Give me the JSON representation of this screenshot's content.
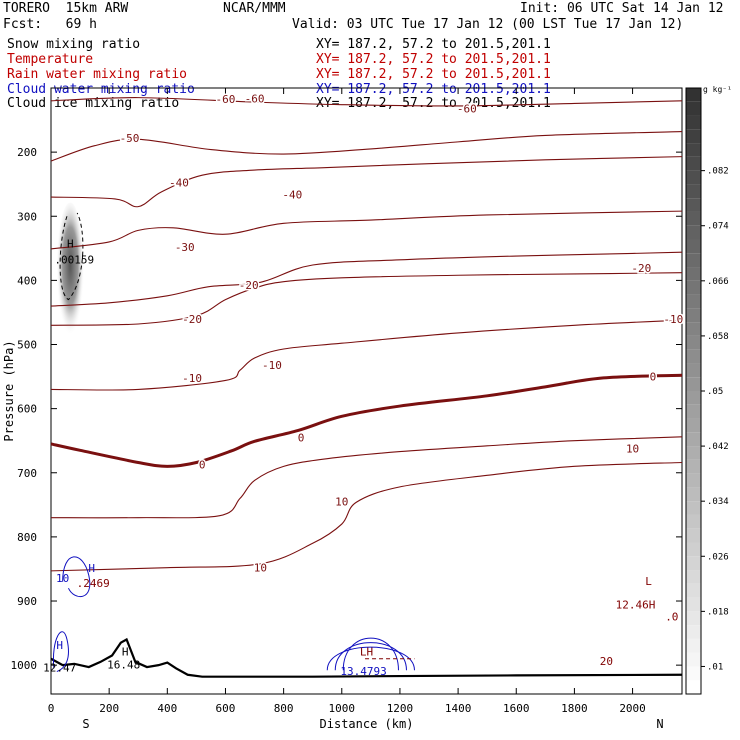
{
  "header": {
    "model": "TORERO  15km ARW",
    "org": "NCAR/MMM",
    "init": "Init: 06 UTC Sat 14 Jan 12",
    "fcst": "Fcst:   69 h",
    "valid": "Valid: 03 UTC Tue 17 Jan 12 (00 LST Tue 17 Jan 12)",
    "fields": [
      {
        "name": "Snow mixing ratio",
        "color": "#000000",
        "xy": "XY= 187.2, 57.2 to 201.5,201.1"
      },
      {
        "name": "Temperature",
        "color": "#c00000",
        "xy": "XY= 187.2, 57.2 to 201.5,201.1"
      },
      {
        "name": "Rain water mixing ratio",
        "color": "#c00000",
        "xy": "XY= 187.2, 57.2 to 201.5,201.1"
      },
      {
        "name": "Cloud water mixing ratio",
        "color": "#1010c0",
        "xy": "XY= 187.2, 57.2 to 201.5,201.1"
      },
      {
        "name": "Cloud ice mixing ratio",
        "color": "#000000",
        "xy": "XY= 187.2, 57.2 to 201.5,201.1"
      }
    ]
  },
  "chart_data": {
    "type": "cross-section contour",
    "xlabel": "Distance (km)",
    "ylabel": "Pressure (hPa)",
    "xlim": [
      0,
      2170
    ],
    "ylim": [
      1045,
      100
    ],
    "x_ticks": [
      "0",
      "200",
      "400",
      "600",
      "800",
      "1000",
      "1200",
      "1400",
      "1600",
      "1800",
      "2000"
    ],
    "y_ticks": [
      "200",
      "300",
      "400",
      "500",
      "600",
      "700",
      "800",
      "900",
      "1000"
    ],
    "endpoints": {
      "left": "S",
      "right": "N"
    },
    "colorbar": {
      "unit": "g kg⁻¹",
      "ticks": [
        ".01",
        ".018",
        ".026",
        ".034",
        ".042",
        ".05",
        ".058",
        ".066",
        ".074",
        ".082"
      ],
      "range": [
        0.006,
        0.094
      ]
    },
    "temperature_isotherms": [
      {
        "level": -60,
        "pts": [
          [
            0,
            120
          ],
          [
            300,
            115
          ],
          [
            700,
            122
          ],
          [
            1000,
            126
          ],
          [
            1400,
            128
          ],
          [
            1800,
            124
          ],
          [
            2170,
            120
          ]
        ],
        "labels": [
          [
            600,
            117,
            "-60"
          ],
          [
            700,
            116,
            "-60"
          ],
          [
            1430,
            132,
            "-60"
          ]
        ]
      },
      {
        "level": -50,
        "pts": [
          [
            0,
            214
          ],
          [
            150,
            190
          ],
          [
            300,
            180
          ],
          [
            550,
            196
          ],
          [
            800,
            203
          ],
          [
            1100,
            195
          ],
          [
            1400,
            184
          ],
          [
            1700,
            174
          ],
          [
            2170,
            168
          ]
        ],
        "labels": [
          [
            270,
            178,
            "-50"
          ]
        ]
      },
      {
        "level": -40,
        "pts": [
          [
            0,
            270
          ],
          [
            220,
            273
          ],
          [
            300,
            285
          ],
          [
            380,
            262
          ],
          [
            520,
            236
          ],
          [
            700,
            228
          ],
          [
            950,
            224
          ],
          [
            1300,
            218
          ],
          [
            1700,
            212
          ],
          [
            2170,
            207
          ]
        ],
        "labels": [
          [
            440,
            247,
            "-40"
          ],
          [
            830,
            266,
            "-40"
          ]
        ]
      },
      {
        "level": -30,
        "pts": [
          [
            0,
            351
          ],
          [
            200,
            340
          ],
          [
            300,
            322
          ],
          [
            420,
            318
          ],
          [
            600,
            328
          ],
          [
            800,
            311
          ],
          [
            1100,
            306
          ],
          [
            1500,
            298
          ],
          [
            2170,
            292
          ]
        ],
        "labels": [
          [
            460,
            348,
            "-30"
          ]
        ]
      },
      {
        "level": -20,
        "pts": [
          [
            0,
            440
          ],
          [
            200,
            435
          ],
          [
            400,
            424
          ],
          [
            540,
            410
          ],
          [
            720,
            403
          ],
          [
            900,
            376
          ],
          [
            1200,
            368
          ],
          [
            1600,
            362
          ],
          [
            2000,
            358
          ],
          [
            2170,
            356
          ]
        ],
        "labels": [
          [
            680,
            407,
            "-20"
          ],
          [
            2030,
            381,
            "-20"
          ]
        ]
      },
      {
        "level": -20,
        "pts": [
          [
            0,
            470
          ],
          [
            300,
            468
          ],
          [
            500,
            455
          ],
          [
            600,
            430
          ],
          [
            700,
            412
          ],
          [
            800,
            402
          ],
          [
            1000,
            396
          ],
          [
            1400,
            392
          ],
          [
            1800,
            390
          ],
          [
            2170,
            388
          ]
        ],
        "labels": [
          [
            485,
            460,
            "-20"
          ]
        ]
      },
      {
        "level": -10,
        "pts": [
          [
            0,
            570
          ],
          [
            300,
            570
          ],
          [
            600,
            556
          ],
          [
            650,
            540
          ],
          [
            700,
            521
          ],
          [
            800,
            507
          ],
          [
            1000,
            498
          ],
          [
            1400,
            482
          ],
          [
            1800,
            470
          ],
          [
            2170,
            462
          ]
        ],
        "labels": [
          [
            485,
            552,
            "-10"
          ],
          [
            760,
            532,
            "-10"
          ],
          [
            2140,
            460,
            "-10"
          ]
        ]
      },
      {
        "level": 0,
        "thick": true,
        "pts": [
          [
            0,
            655
          ],
          [
            100,
            665
          ],
          [
            300,
            684
          ],
          [
            400,
            690
          ],
          [
            500,
            684
          ],
          [
            620,
            666
          ],
          [
            700,
            651
          ],
          [
            850,
            634
          ],
          [
            1000,
            612
          ],
          [
            1200,
            596
          ],
          [
            1500,
            580
          ],
          [
            1700,
            566
          ],
          [
            1900,
            552
          ],
          [
            2170,
            548
          ]
        ],
        "labels": [
          [
            520,
            687,
            "0"
          ],
          [
            860,
            645,
            "0"
          ],
          [
            2070,
            550,
            "0"
          ]
        ]
      },
      {
        "level": 10,
        "pts": [
          [
            0,
            770
          ],
          [
            300,
            770
          ],
          [
            580,
            767
          ],
          [
            650,
            740
          ],
          [
            700,
            712
          ],
          [
            800,
            690
          ],
          [
            950,
            678
          ],
          [
            1200,
            667
          ],
          [
            1500,
            658
          ],
          [
            1800,
            650
          ],
          [
            2170,
            644
          ]
        ],
        "labels": [
          [
            1000,
            745,
            "10"
          ],
          [
            2000,
            662,
            "10"
          ]
        ]
      },
      {
        "level": 10,
        "pts": [
          [
            0,
            853
          ],
          [
            400,
            848
          ],
          [
            720,
            842
          ],
          [
            900,
            810
          ],
          [
            1000,
            780
          ],
          [
            1050,
            746
          ],
          [
            1200,
            722
          ],
          [
            1500,
            704
          ],
          [
            1800,
            690
          ],
          [
            2170,
            684
          ]
        ],
        "labels": [
          [
            720,
            848,
            "10"
          ]
        ]
      }
    ],
    "ice_maximum": {
      "label": "H",
      "value": ".00159",
      "x": 80,
      "p": 380
    },
    "annotations": [
      {
        "text": "L",
        "color": "#800000",
        "x": 2055,
        "p": 875
      },
      {
        "text": "12.46H",
        "color": "#800000",
        "x": 2010,
        "p": 912
      },
      {
        "text": ".0",
        "color": "#800000",
        "x": 2135,
        "p": 930
      },
      {
        "text": "LH",
        "color": "#800000",
        "x": 1085,
        "p": 985
      },
      {
        "text": "13.4793",
        "color": "#1010c0",
        "x": 1075,
        "p": 1015
      },
      {
        "text": "H",
        "color": "#1010c0",
        "x": 30,
        "p": 975
      },
      {
        "text": "10",
        "color": "#1010c0",
        "x": 40,
        "p": 870
      },
      {
        "text": ".2469",
        "color": "#800000",
        "x": 145,
        "p": 878
      },
      {
        "text": "12.47",
        "color": "#000000",
        "x": 30,
        "p": 1010
      },
      {
        "text": "16.48",
        "color": "#000000",
        "x": 250,
        "p": 1005
      },
      {
        "text": "H",
        "color": "#000000",
        "x": 255,
        "p": 985
      },
      {
        "text": "20",
        "color": "#800000",
        "x": 1910,
        "p": 1000
      },
      {
        "text": "H",
        "color": "#1010c0",
        "x": 140,
        "p": 855
      }
    ]
  }
}
